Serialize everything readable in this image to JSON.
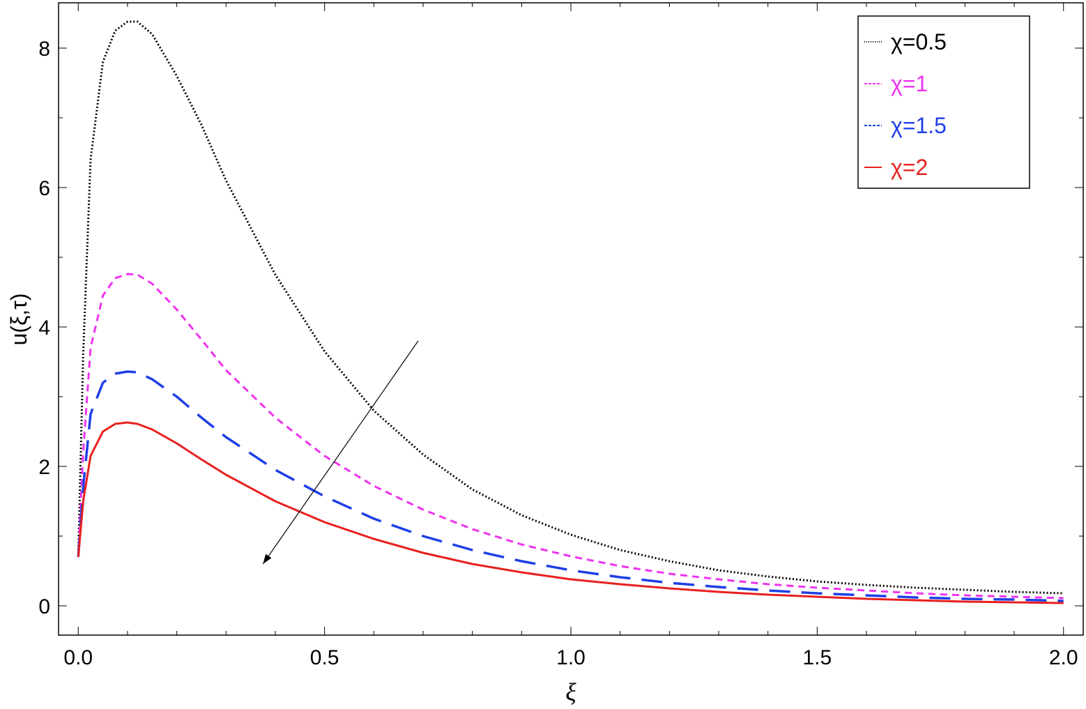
{
  "chart_data": {
    "type": "line",
    "title": "",
    "xlabel": "ξ",
    "ylabel": "u(ξ,τ)",
    "xlim": [
      -0.04,
      2.04
    ],
    "ylim": [
      -0.42,
      8.65
    ],
    "x_ticks": [
      "0.0",
      "0.5",
      "1.0",
      "1.5",
      "2.0"
    ],
    "y_ticks": [
      "0",
      "2",
      "4",
      "6",
      "8"
    ],
    "grid": false,
    "legend_position": "top-right",
    "x": [
      0.0,
      0.01,
      0.025,
      0.05,
      0.075,
      0.1,
      0.12,
      0.15,
      0.2,
      0.25,
      0.3,
      0.4,
      0.5,
      0.6,
      0.7,
      0.8,
      0.9,
      1.0,
      1.1,
      1.2,
      1.3,
      1.4,
      1.5,
      1.6,
      1.7,
      1.8,
      1.9,
      2.0
    ],
    "series": [
      {
        "name": "χ=0.5",
        "color": "#000000",
        "dash": "dotted",
        "values": [
          0.7,
          3.6,
          6.4,
          7.8,
          8.25,
          8.38,
          8.38,
          8.2,
          7.6,
          6.9,
          6.1,
          4.75,
          3.65,
          2.8,
          2.17,
          1.67,
          1.3,
          1.02,
          0.8,
          0.64,
          0.51,
          0.42,
          0.35,
          0.3,
          0.26,
          0.23,
          0.2,
          0.18
        ]
      },
      {
        "name": "χ=1",
        "color": "#ee33ee",
        "dash": "short-dash",
        "values": [
          0.7,
          2.2,
          3.7,
          4.45,
          4.7,
          4.76,
          4.75,
          4.62,
          4.25,
          3.82,
          3.38,
          2.7,
          2.15,
          1.72,
          1.38,
          1.1,
          0.88,
          0.71,
          0.57,
          0.46,
          0.38,
          0.31,
          0.26,
          0.22,
          0.18,
          0.15,
          0.13,
          0.11
        ]
      },
      {
        "name": "χ=1.5",
        "color": "#1f3fe6",
        "dash": "long-dash",
        "values": [
          0.7,
          1.7,
          2.75,
          3.2,
          3.33,
          3.36,
          3.35,
          3.25,
          3.0,
          2.7,
          2.42,
          1.95,
          1.57,
          1.25,
          1.0,
          0.8,
          0.64,
          0.51,
          0.41,
          0.33,
          0.27,
          0.22,
          0.18,
          0.15,
          0.12,
          0.1,
          0.09,
          0.07
        ]
      },
      {
        "name": "χ=2",
        "color": "#e8201e",
        "dash": "solid",
        "values": [
          0.7,
          1.5,
          2.15,
          2.5,
          2.61,
          2.63,
          2.61,
          2.53,
          2.33,
          2.1,
          1.88,
          1.5,
          1.2,
          0.96,
          0.76,
          0.6,
          0.48,
          0.38,
          0.31,
          0.25,
          0.2,
          0.16,
          0.13,
          0.1,
          0.08,
          0.06,
          0.05,
          0.04
        ]
      }
    ],
    "annotations": [
      {
        "type": "arrow",
        "from": [
          0.69,
          3.8
        ],
        "to": [
          0.375,
          0.6
        ],
        "meaning": "direction of increasing χ"
      }
    ]
  },
  "colors": {
    "frame": "#000000",
    "background": "#ffffff"
  }
}
